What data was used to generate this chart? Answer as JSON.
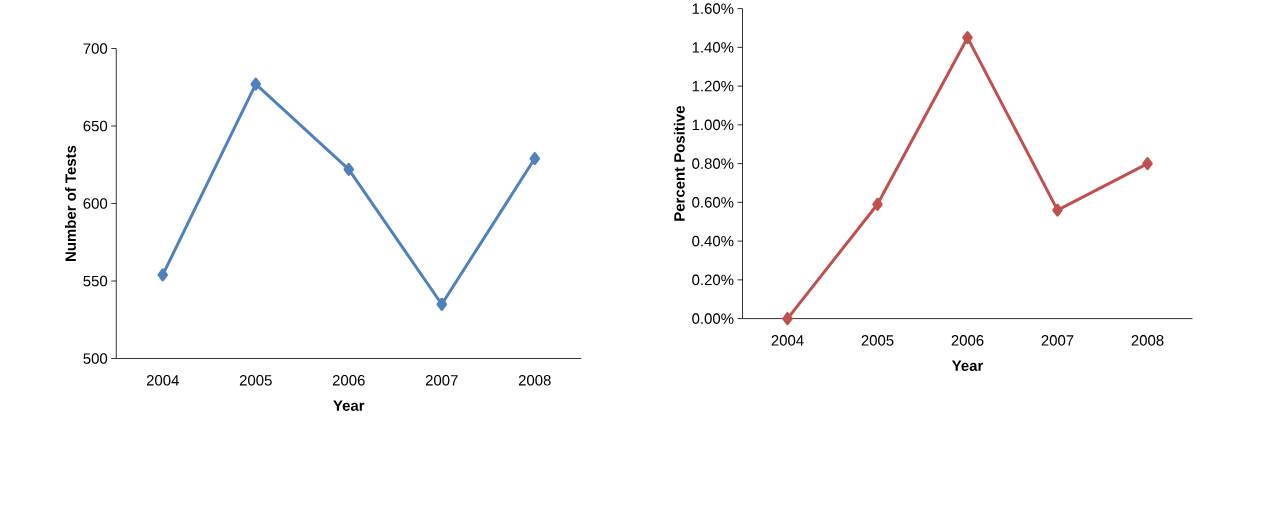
{
  "chart_data": [
    {
      "type": "line",
      "xlabel": "Year",
      "ylabel": "Number of Tests",
      "categories": [
        "2004",
        "2005",
        "2006",
        "2007",
        "2008"
      ],
      "series": [
        {
          "color": "#4f81bd",
          "values": [
            554,
            677,
            622,
            535,
            629
          ]
        }
      ],
      "ylim": [
        500,
        700
      ],
      "yticks": [
        500,
        550,
        600,
        650,
        700
      ],
      "marker": "diamond",
      "line_style": "solid"
    },
    {
      "type": "line",
      "xlabel": "Year",
      "ylabel": "Percent  Positive",
      "categories": [
        "2004",
        "2005",
        "2006",
        "2007",
        "2008"
      ],
      "series": [
        {
          "color": "#c0504d",
          "values": [
            0,
            0.59,
            1.45,
            0.56,
            0.8
          ]
        }
      ],
      "ylim": [
        0,
        1.6
      ],
      "yticks": [
        {
          "value": 0,
          "label": "0.00%"
        },
        {
          "value": 0.2,
          "label": "0.20%"
        },
        {
          "value": 0.4,
          "label": "0.40%"
        },
        {
          "value": 0.6,
          "label": "0.60%"
        },
        {
          "value": 0.8,
          "label": "0.80%"
        },
        {
          "value": 1.0,
          "label": "1.00%"
        },
        {
          "value": 1.2,
          "label": "1.20%"
        },
        {
          "value": 1.4,
          "label": "1.40%"
        },
        {
          "value": 1.6,
          "label": "1.60%"
        }
      ],
      "marker": "diamond",
      "line_style": "solid"
    }
  ]
}
